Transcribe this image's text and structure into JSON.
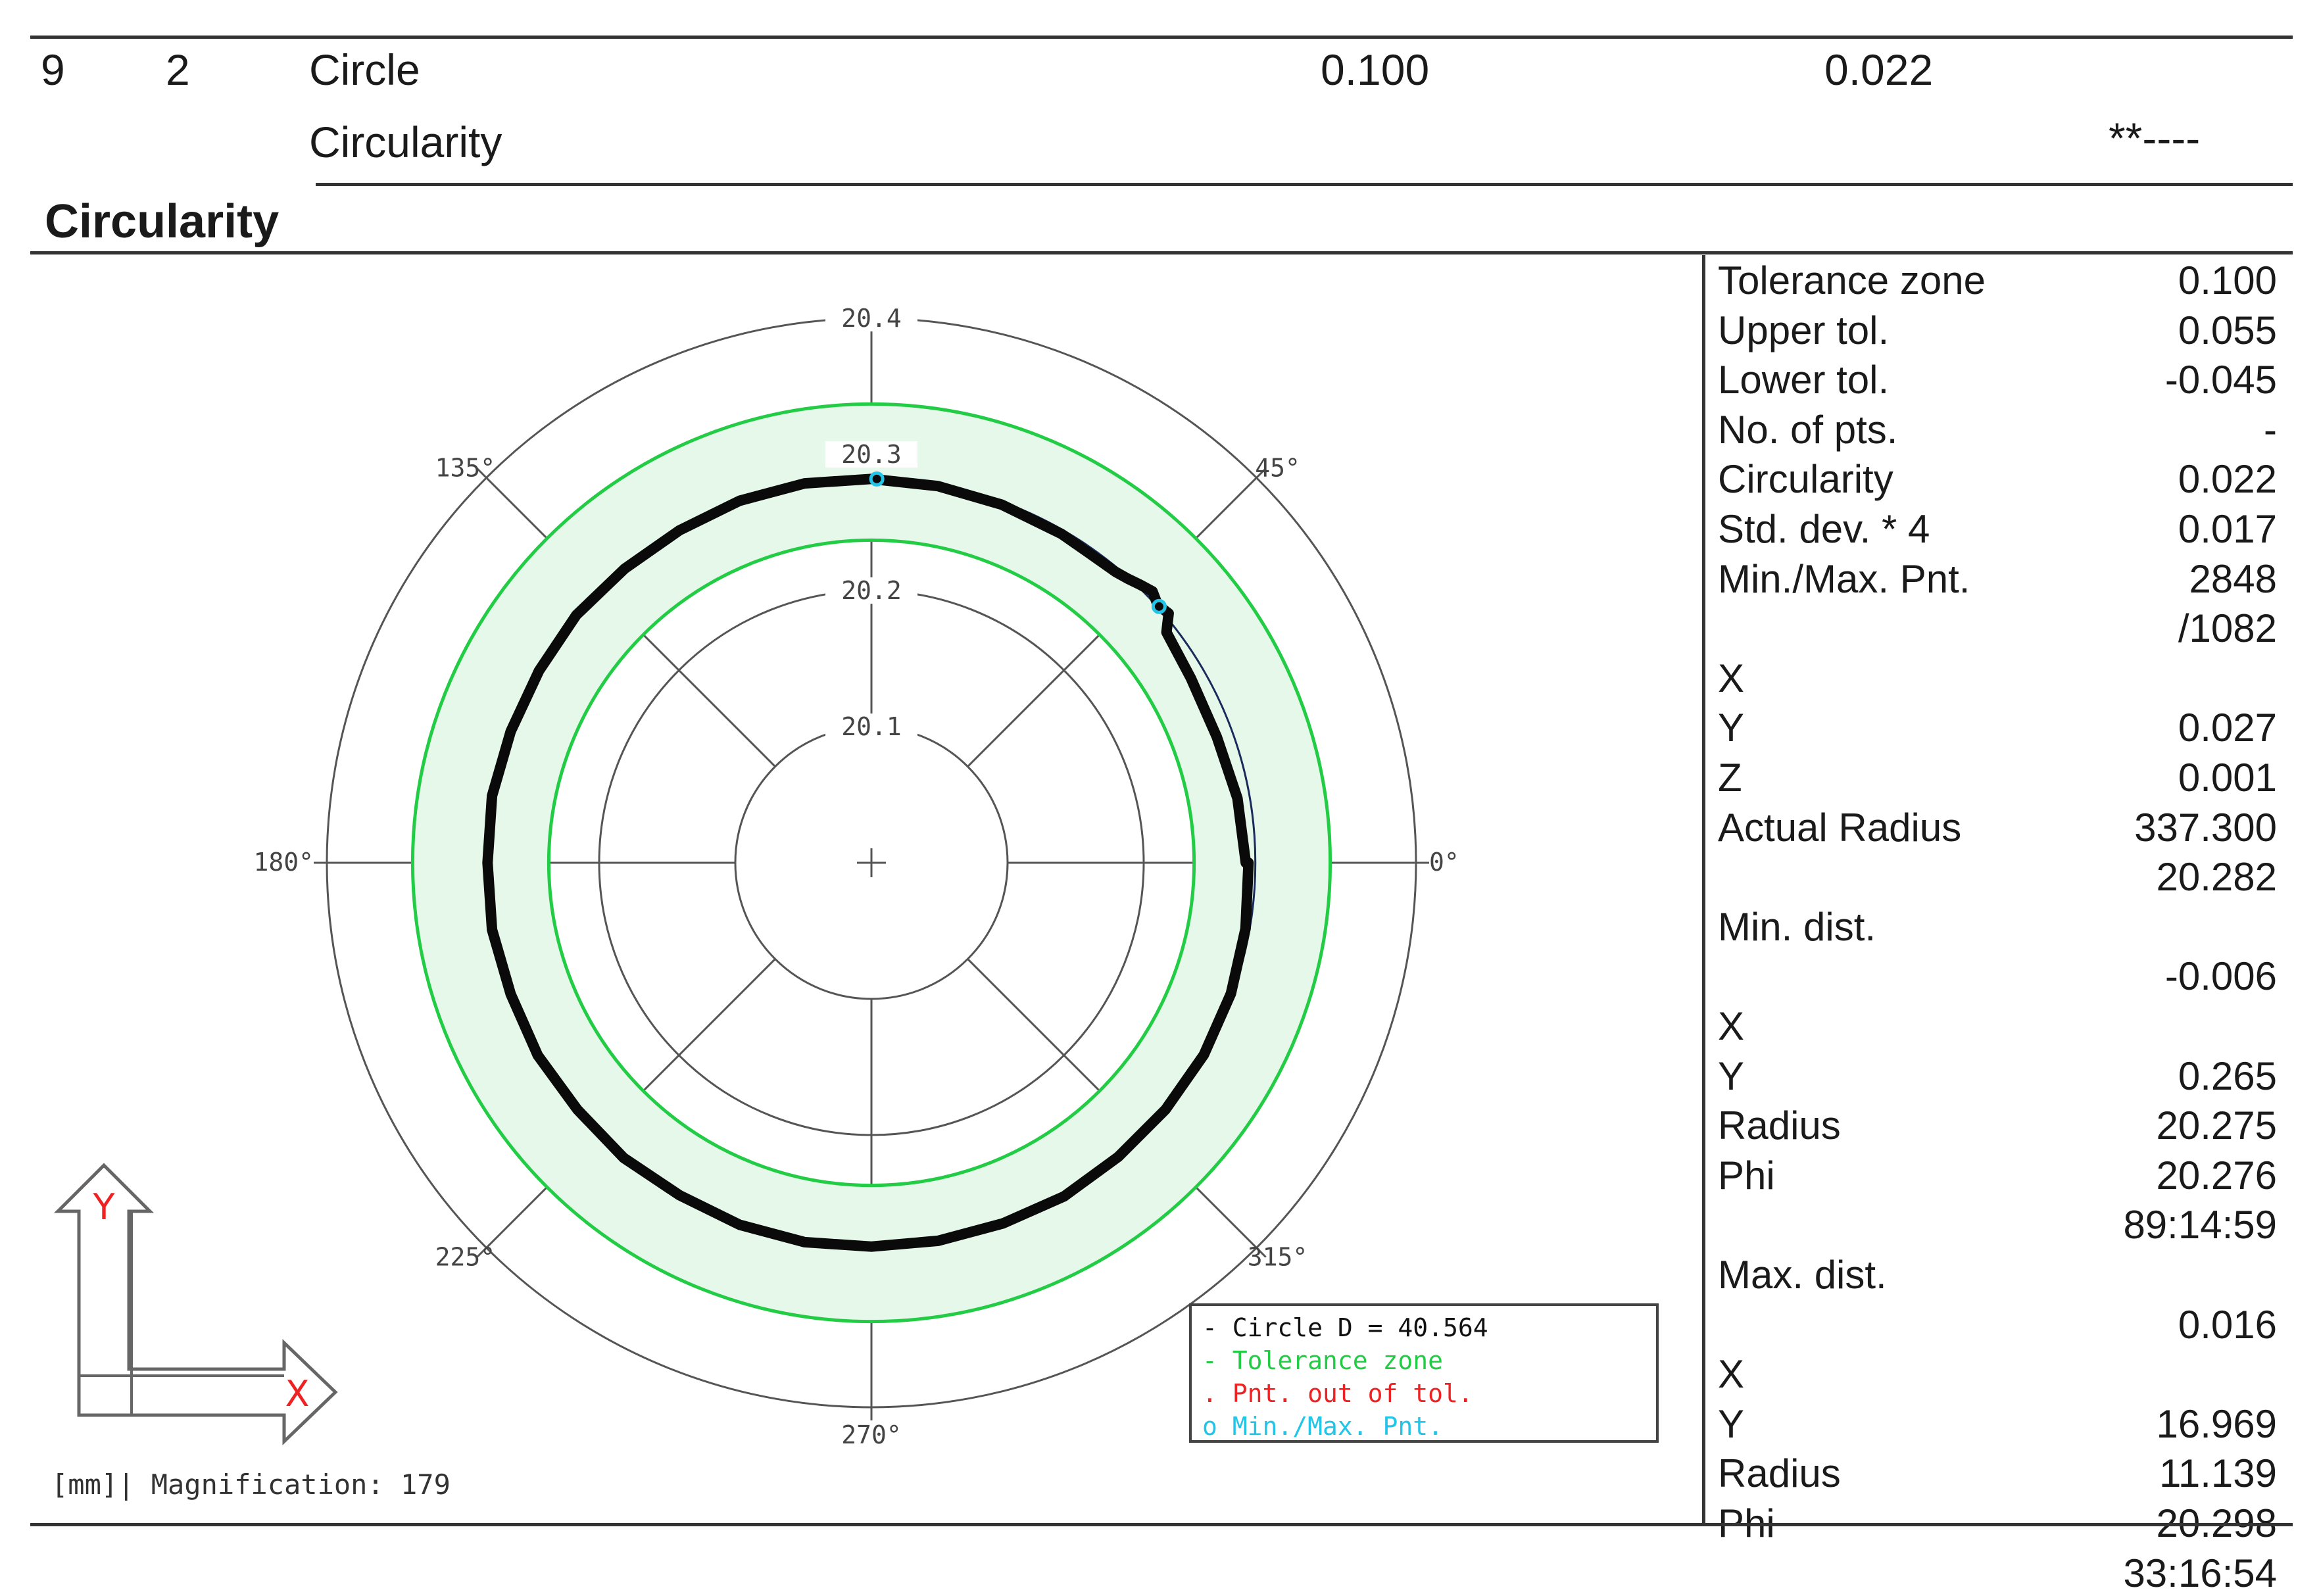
{
  "header": {
    "row_no": "9",
    "feature_no": "2",
    "feature": "Circle",
    "characteristic": "Circularity",
    "tolerance": "0.100",
    "measured": "0.022",
    "deviation_marker": "**----"
  },
  "section_title": "Circularity",
  "params": [
    {
      "label": "Tolerance zone",
      "value": "0.100"
    },
    {
      "label": "Upper tol.",
      "value": "0.055"
    },
    {
      "label": "Lower tol.",
      "value": "-0.045"
    },
    {
      "label": "No. of pts.",
      "value": "-"
    },
    {
      "label": "Circularity",
      "value": "0.022"
    },
    {
      "label": "Std. dev. * 4",
      "value": "0.017"
    },
    {
      "label": "Min./Max. Pnt.",
      "value": "2848"
    },
    {
      "label": "",
      "value": "/1082"
    },
    {
      "label": "X",
      "value": ""
    },
    {
      "label": "Y",
      "value": "0.027"
    },
    {
      "label": "Z",
      "value": "0.001"
    },
    {
      "label": "Actual Radius",
      "value": "337.300"
    },
    {
      "label": "",
      "value": "20.282"
    },
    {
      "label": "Min. dist.",
      "value": ""
    },
    {
      "label": "",
      "value": "-0.006"
    },
    {
      "label": "X",
      "value": ""
    },
    {
      "label": "Y",
      "value": "0.265"
    },
    {
      "label": "Radius",
      "value": "20.275"
    },
    {
      "label": "Phi",
      "value": "20.276"
    },
    {
      "label": "",
      "value": "89:14:59"
    },
    {
      "label": "Max. dist.",
      "value": ""
    },
    {
      "label": "",
      "value": "0.016"
    },
    {
      "label": "X",
      "value": ""
    },
    {
      "label": "Y",
      "value": "16.969"
    },
    {
      "label": "Radius",
      "value": "11.139"
    },
    {
      "label": "Phi",
      "value": "20.298"
    },
    {
      "label": "",
      "value": "33:16:54"
    }
  ],
  "chart_data": {
    "type": "polar-roundness",
    "radial_ticks": [
      20.1,
      20.2,
      20.3,
      20.4
    ],
    "radial_tick_labels": [
      "20.1",
      "20.2",
      "20.3",
      "20.4"
    ],
    "angle_ticks_deg": [
      0,
      45,
      135,
      180,
      225,
      270,
      315
    ],
    "angle_tick_labels": [
      "0°",
      "45°",
      "135°",
      "180°",
      "225°",
      "270°",
      "315°"
    ],
    "radial_range": [
      20.0,
      20.4
    ],
    "reference_radius": 20.282,
    "tolerance_zone": {
      "lower": 20.237,
      "upper": 20.337
    },
    "measured_profile": {
      "theta_deg": [
        0,
        10,
        20,
        30,
        38,
        40,
        42,
        44,
        46,
        48,
        50,
        55,
        60,
        70,
        80,
        90,
        100,
        110,
        120,
        130,
        140,
        150,
        160,
        170,
        180,
        190,
        200,
        210,
        220,
        230,
        240,
        250,
        260,
        270,
        280,
        290,
        300,
        310,
        320,
        330,
        340,
        350,
        360
      ],
      "r": [
        20.275,
        20.273,
        20.27,
        20.271,
        20.275,
        20.285,
        20.283,
        20.287,
        20.284,
        20.281,
        20.279,
        20.278,
        20.279,
        20.28,
        20.281,
        20.282,
        20.283,
        20.283,
        20.282,
        20.282,
        20.283,
        20.282,
        20.282,
        20.283,
        20.282,
        20.283,
        20.282,
        20.283,
        20.282,
        20.283,
        20.282,
        20.283,
        20.283,
        20.282,
        20.282,
        20.282,
        20.283,
        20.282,
        20.282,
        20.282,
        20.281,
        20.279,
        20.277
      ]
    },
    "min_max_points_deg": [
      41.7,
      89.2
    ],
    "legend": [
      {
        "label": "- Circle   D = 40.564",
        "color": "#111111"
      },
      {
        "label": "- Tolerance zone",
        "color": "#22cc44"
      },
      {
        "label": ". Pnt. out of tol.",
        "color": "#ee2222"
      },
      {
        "label": "o Min./Max. Pnt.",
        "color": "#22c4e8"
      }
    ],
    "footer": "[mm]| Magnification: 179",
    "axis_x_label": "X",
    "axis_y_label": "Y"
  }
}
